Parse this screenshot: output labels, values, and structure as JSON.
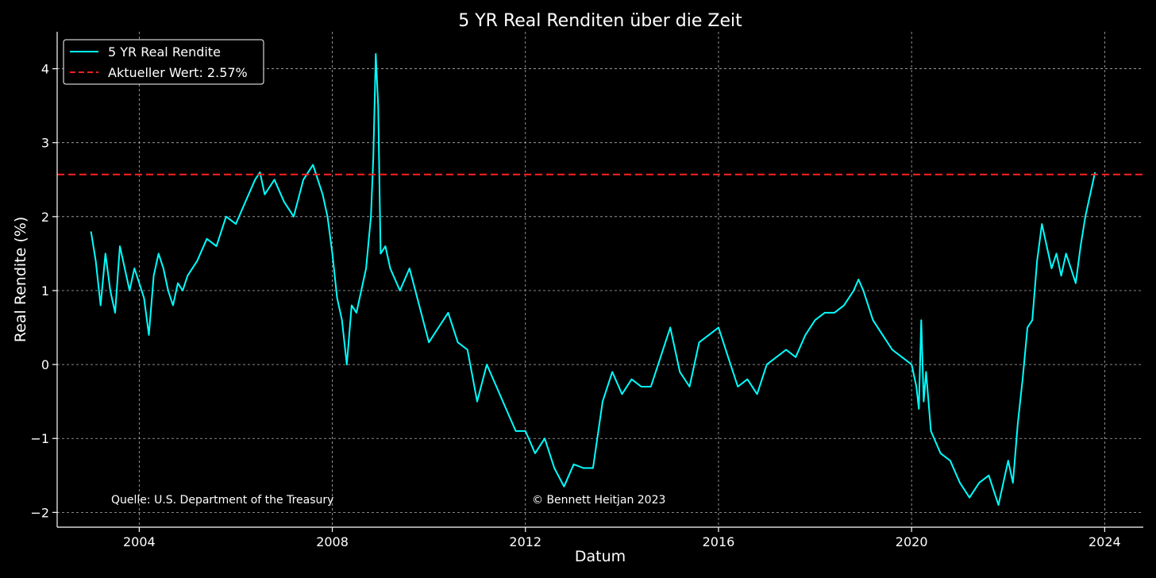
{
  "chart_data": {
    "type": "line",
    "title": "5 YR Real Renditen über die Zeit",
    "xlabel": "Datum",
    "ylabel": "Real Rendite (%)",
    "xlim": [
      2002.3,
      2024.8
    ],
    "ylim": [
      -2.2,
      4.5
    ],
    "x_ticks": [
      {
        "value": 2004,
        "label": "2004"
      },
      {
        "value": 2008,
        "label": "2008"
      },
      {
        "value": 2012,
        "label": "2012"
      },
      {
        "value": 2016,
        "label": "2016"
      },
      {
        "value": 2020,
        "label": "2020"
      },
      {
        "value": 2024,
        "label": "2024"
      }
    ],
    "y_ticks": [
      {
        "value": -2,
        "label": "−2"
      },
      {
        "value": -1,
        "label": "−1"
      },
      {
        "value": 0,
        "label": "0"
      },
      {
        "value": 1,
        "label": "1"
      },
      {
        "value": 2,
        "label": "2"
      },
      {
        "value": 3,
        "label": "3"
      },
      {
        "value": 4,
        "label": "4"
      }
    ],
    "grid": true,
    "legend_position": "top-left",
    "series": [
      {
        "name": "5 YR Real Rendite",
        "color": "#00ffff",
        "style": "solid",
        "x": [
          2003.0,
          2003.1,
          2003.2,
          2003.3,
          2003.4,
          2003.5,
          2003.6,
          2003.7,
          2003.8,
          2003.9,
          2004.0,
          2004.1,
          2004.2,
          2004.3,
          2004.4,
          2004.5,
          2004.6,
          2004.7,
          2004.8,
          2004.9,
          2005.0,
          2005.2,
          2005.4,
          2005.6,
          2005.8,
          2006.0,
          2006.2,
          2006.4,
          2006.5,
          2006.6,
          2006.8,
          2007.0,
          2007.2,
          2007.4,
          2007.6,
          2007.8,
          2007.9,
          2008.0,
          2008.1,
          2008.2,
          2008.3,
          2008.4,
          2008.5,
          2008.6,
          2008.7,
          2008.8,
          2008.85,
          2008.9,
          2008.95,
          2009.0,
          2009.1,
          2009.2,
          2009.4,
          2009.6,
          2009.8,
          2010.0,
          2010.2,
          2010.4,
          2010.6,
          2010.8,
          2011.0,
          2011.2,
          2011.4,
          2011.6,
          2011.8,
          2012.0,
          2012.2,
          2012.4,
          2012.6,
          2012.8,
          2013.0,
          2013.2,
          2013.4,
          2013.6,
          2013.8,
          2014.0,
          2014.2,
          2014.4,
          2014.6,
          2014.8,
          2015.0,
          2015.2,
          2015.4,
          2015.6,
          2015.8,
          2016.0,
          2016.2,
          2016.4,
          2016.6,
          2016.8,
          2017.0,
          2017.2,
          2017.4,
          2017.6,
          2017.8,
          2018.0,
          2018.2,
          2018.4,
          2018.6,
          2018.8,
          2018.9,
          2019.0,
          2019.2,
          2019.4,
          2019.6,
          2019.8,
          2020.0,
          2020.1,
          2020.15,
          2020.2,
          2020.25,
          2020.3,
          2020.4,
          2020.6,
          2020.8,
          2021.0,
          2021.2,
          2021.4,
          2021.6,
          2021.8,
          2022.0,
          2022.1,
          2022.2,
          2022.3,
          2022.4,
          2022.5,
          2022.6,
          2022.7,
          2022.8,
          2022.9,
          2023.0,
          2023.1,
          2023.2,
          2023.3,
          2023.4,
          2023.5,
          2023.6,
          2023.7,
          2023.8
        ],
        "y": [
          1.8,
          1.4,
          0.8,
          1.5,
          1.0,
          0.7,
          1.6,
          1.3,
          1.0,
          1.3,
          1.1,
          0.9,
          0.4,
          1.2,
          1.5,
          1.3,
          1.0,
          0.8,
          1.1,
          1.0,
          1.2,
          1.4,
          1.7,
          1.6,
          2.0,
          1.9,
          2.2,
          2.5,
          2.6,
          2.3,
          2.5,
          2.2,
          2.0,
          2.5,
          2.7,
          2.3,
          2.0,
          1.5,
          0.9,
          0.6,
          0.0,
          0.8,
          0.7,
          1.0,
          1.3,
          2.0,
          2.8,
          4.2,
          3.5,
          1.5,
          1.6,
          1.3,
          1.0,
          1.3,
          0.8,
          0.3,
          0.5,
          0.7,
          0.3,
          0.2,
          -0.5,
          0.0,
          -0.3,
          -0.6,
          -0.9,
          -0.9,
          -1.2,
          -1.0,
          -1.4,
          -1.65,
          -1.35,
          -1.4,
          -1.4,
          -0.5,
          -0.1,
          -0.4,
          -0.2,
          -0.3,
          -0.3,
          0.1,
          0.5,
          -0.1,
          -0.3,
          0.3,
          0.4,
          0.5,
          0.1,
          -0.3,
          -0.2,
          -0.4,
          0.0,
          0.1,
          0.2,
          0.1,
          0.4,
          0.6,
          0.7,
          0.7,
          0.8,
          1.0,
          1.15,
          1.0,
          0.6,
          0.4,
          0.2,
          0.1,
          0.0,
          -0.3,
          -0.6,
          0.6,
          -0.5,
          -0.1,
          -0.9,
          -1.2,
          -1.3,
          -1.6,
          -1.8,
          -1.6,
          -1.5,
          -1.9,
          -1.3,
          -1.6,
          -0.8,
          -0.2,
          0.5,
          0.6,
          1.4,
          1.9,
          1.6,
          1.3,
          1.5,
          1.2,
          1.5,
          1.3,
          1.1,
          1.6,
          2.0,
          2.3,
          2.6
        ]
      },
      {
        "name": "Aktueller Wert: 2.57%",
        "color": "#ff2020",
        "style": "dashed",
        "value": 2.57
      }
    ]
  },
  "annotations": {
    "source": "Quelle: U.S. Department of the Treasury",
    "copyright": "© Bennett Heitjan 2023"
  }
}
